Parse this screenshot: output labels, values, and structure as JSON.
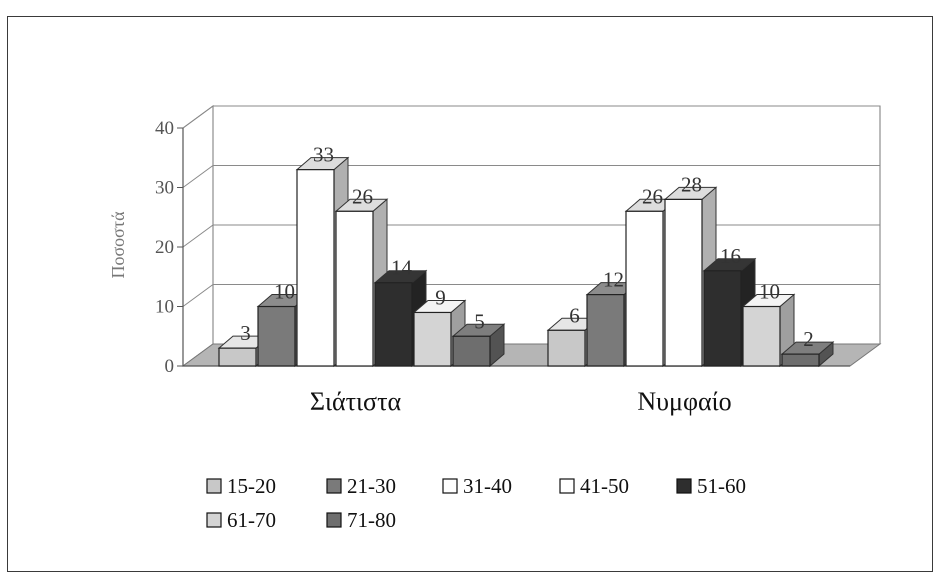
{
  "chart_data": {
    "type": "bar",
    "ylabel": "Ποσοστά",
    "ylim": [
      0,
      40
    ],
    "yticks": [
      0,
      10,
      20,
      30,
      40
    ],
    "grid": true,
    "legend_position": "bottom",
    "categories": [
      "Σιάτιστα",
      "Νυμφαίο"
    ],
    "series": [
      {
        "name": "15-20",
        "values": [
          3,
          6
        ],
        "color": "#c8c8c8"
      },
      {
        "name": "21-30",
        "values": [
          10,
          12
        ],
        "color": "#7a7a7a"
      },
      {
        "name": "31-40",
        "values": [
          33,
          26
        ],
        "color": "#ffffff"
      },
      {
        "name": "41-50",
        "values": [
          26,
          28
        ],
        "color": "#ffffff"
      },
      {
        "name": "51-60",
        "values": [
          14,
          16
        ],
        "color": "#2e2e2e"
      },
      {
        "name": "61-70",
        "values": [
          9,
          10
        ],
        "color": "#d4d4d4"
      },
      {
        "name": "71-80",
        "values": [
          5,
          2
        ],
        "color": "#6e6e6e"
      }
    ]
  }
}
